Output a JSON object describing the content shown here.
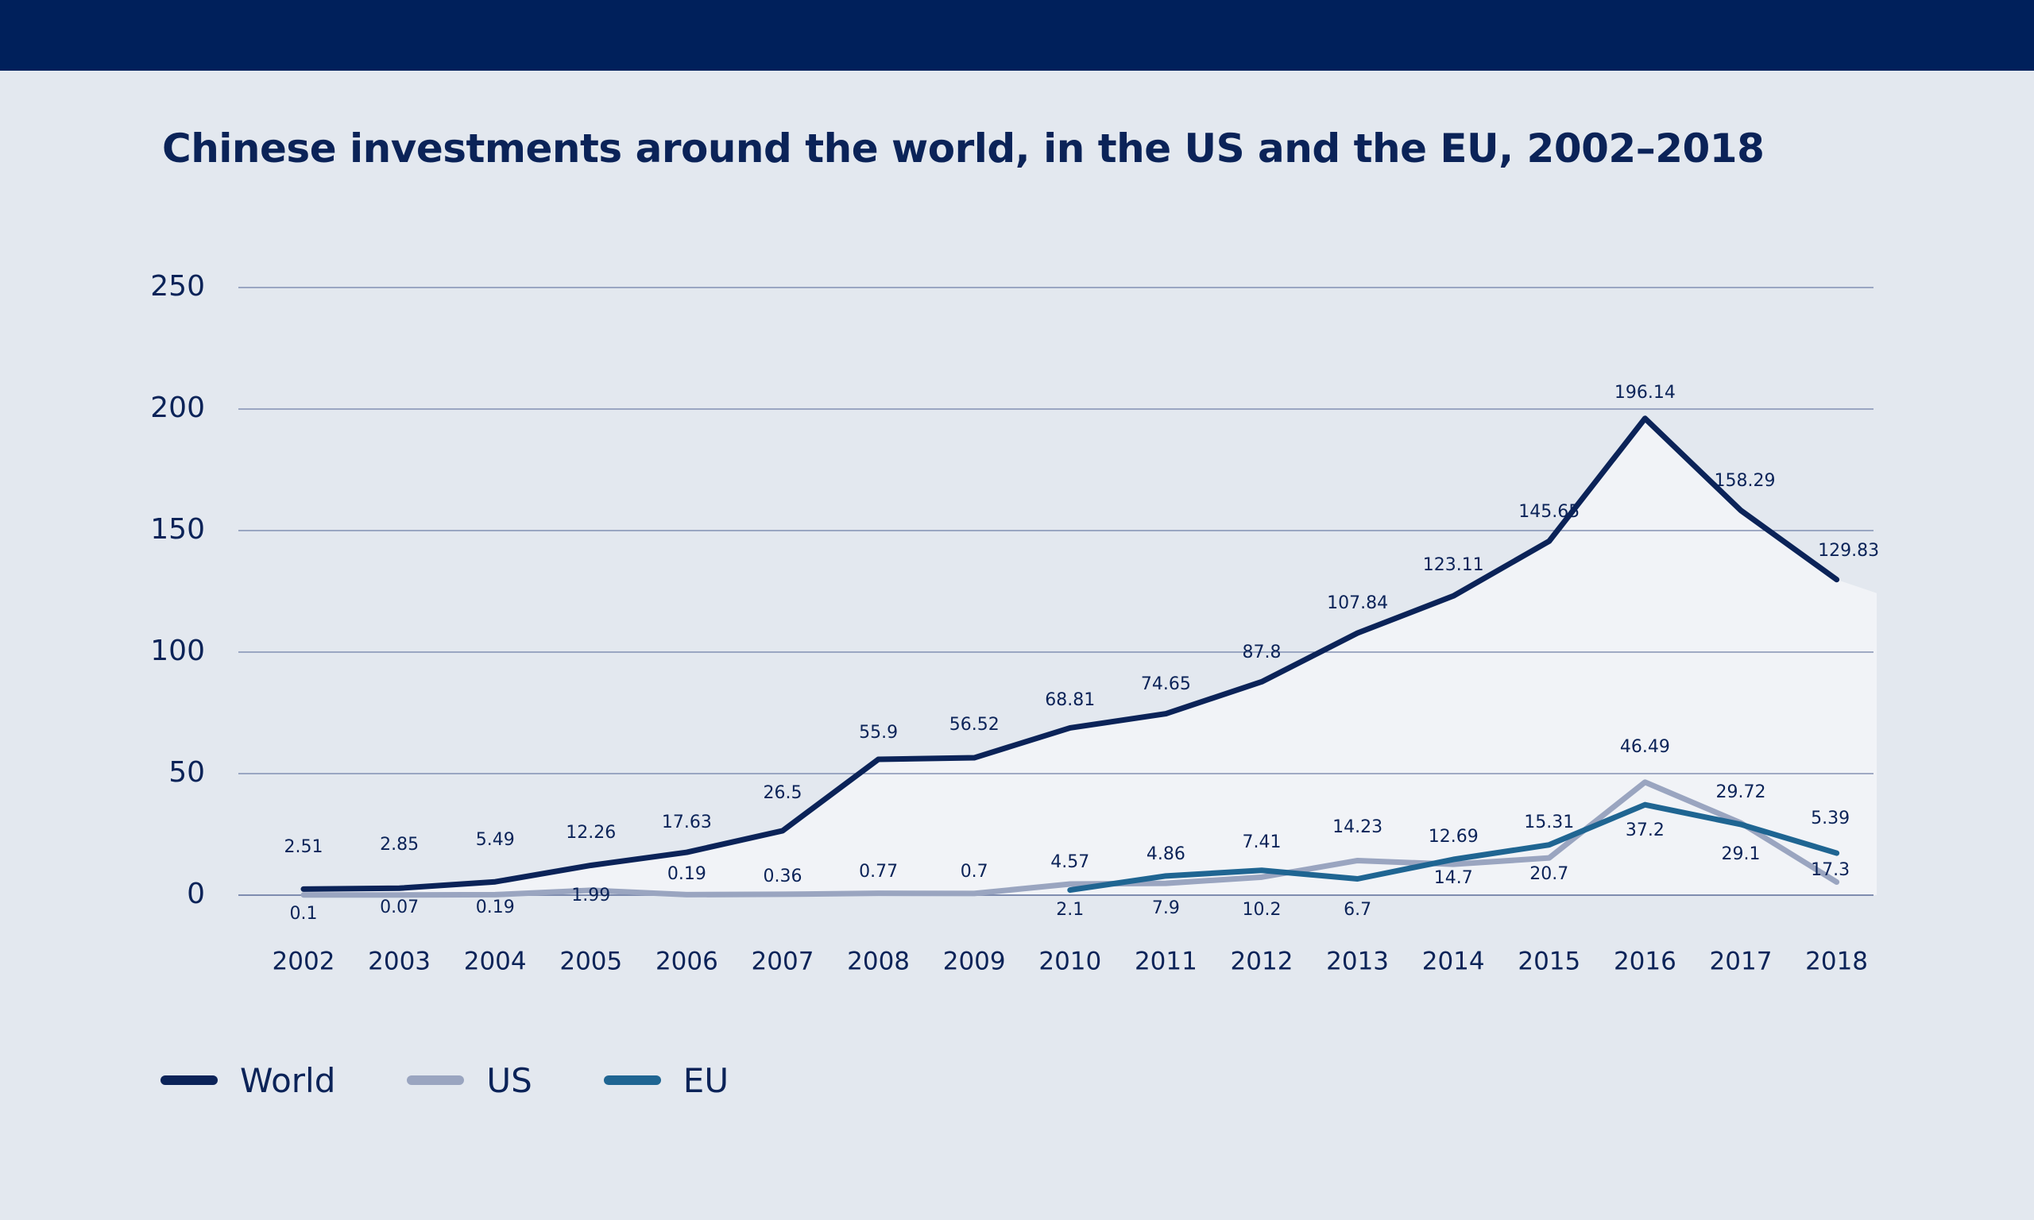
{
  "page": {
    "title": "Chinese investments around the world, in the US and the EU, 2002–2018"
  },
  "colors": {
    "background": "#e3e8ef",
    "header_bar": "#00205b",
    "world": "#0b2358",
    "us": "#9aa5c0",
    "eu": "#1f6592",
    "area_fill": "#f1f3f7",
    "grid": "#6f7fa6",
    "text": "#0b2358"
  },
  "chart_data": {
    "type": "line",
    "title": "Chinese investments around the world, in the US and the EU, 2002–2018",
    "xlabel": "",
    "ylabel": "",
    "ylim": [
      0,
      250
    ],
    "yticks": [
      0,
      50,
      100,
      150,
      200,
      250
    ],
    "grid": true,
    "legend_position": "bottom-left",
    "categories": [
      "2002",
      "2003",
      "2004",
      "2005",
      "2006",
      "2007",
      "2008",
      "2009",
      "2010",
      "2011",
      "2012",
      "2013",
      "2014",
      "2015",
      "2016",
      "2017",
      "2018"
    ],
    "series": [
      {
        "name": "World",
        "color": "#0b2358",
        "values": [
          2.51,
          2.85,
          5.49,
          12.26,
          17.63,
          26.5,
          55.9,
          56.52,
          68.81,
          74.65,
          87.8,
          107.84,
          123.11,
          145.65,
          196.14,
          158.29,
          129.83
        ],
        "labels": [
          "2.51",
          "2.85",
          "5.49",
          "12.26",
          "17.63",
          "26.5",
          "55.9",
          "56.52",
          "68.81",
          "74.65",
          "87.8",
          "107.84",
          "123.11",
          "145.65",
          "196.14",
          "158.29",
          "129.83"
        ]
      },
      {
        "name": "US",
        "color": "#9aa5c0",
        "values": [
          0.1,
          0.07,
          0.19,
          1.99,
          0.19,
          0.36,
          0.77,
          0.7,
          4.57,
          4.86,
          7.41,
          14.23,
          12.69,
          15.31,
          46.49,
          29.72,
          5.39
        ],
        "labels": [
          "0.1",
          "0.07",
          "0.19",
          "1.99",
          "0.19",
          "0.36",
          "0.77",
          "0.7",
          "4.57",
          "4.86",
          "7.41",
          "14.23",
          "12.69",
          "15.31",
          "46.49",
          "29.72",
          "5.39"
        ]
      },
      {
        "name": "EU",
        "color": "#1f6592",
        "values": [
          null,
          null,
          null,
          null,
          null,
          null,
          null,
          null,
          2.1,
          7.9,
          10.2,
          6.7,
          14.7,
          20.7,
          37.2,
          29.1,
          17.3
        ],
        "labels": [
          null,
          null,
          null,
          null,
          null,
          null,
          null,
          null,
          "2.1",
          "7.9",
          "10.2",
          "6.7",
          "14.7",
          "20.7",
          "37.2",
          "29.1",
          "17.3"
        ]
      }
    ],
    "legend": [
      "World",
      "US",
      "EU"
    ]
  }
}
